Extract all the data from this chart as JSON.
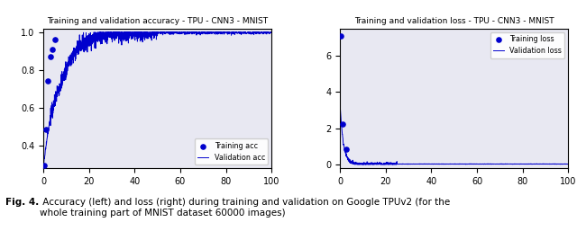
{
  "title_acc": "Training and validation accuracy - TPU - CNN3 - MNIST",
  "title_loss": "Training and validation loss - TPU - CNN3 - MNIST",
  "legend_train_acc": "Training acc",
  "legend_val_acc": "Validation acc",
  "legend_train_loss": "Training loss",
  "legend_val_loss": "Validation loss",
  "acc_xlim": [
    0,
    100
  ],
  "acc_ylim": [
    0.28,
    1.02
  ],
  "loss_xlim": [
    0,
    100
  ],
  "loss_ylim": [
    -0.2,
    7.5
  ],
  "xticks": [
    0,
    20,
    40,
    60,
    80,
    100
  ],
  "plot_color": "#0000cd",
  "bg_color": "#e8e8f2",
  "fig_color": "#ffffff",
  "caption_bold": "Fig. 4.",
  "caption_rest": " Accuracy (left) and loss (right) during training and validation on Google TPUv2 (for the\nwhole training part of MNIST dataset 60000 images)",
  "caption_fontsize": 7.5
}
